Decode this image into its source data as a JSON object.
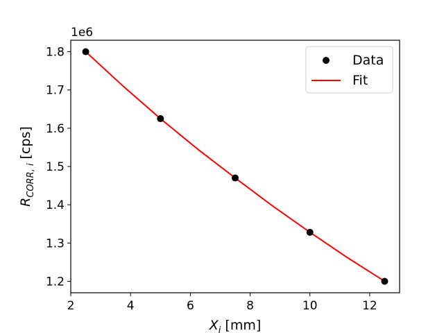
{
  "chart_data": {
    "type": "scatter",
    "xlabel": {
      "main": "X",
      "sub": "i",
      "unit": " [mm]"
    },
    "ylabel": {
      "main": "R",
      "sub": "CORR, i",
      "unit": " [cps]"
    },
    "offset_text": "1e6",
    "xlim": [
      2,
      13
    ],
    "ylim": [
      1.17,
      1.83
    ],
    "xticks": [
      2,
      4,
      6,
      8,
      10,
      12
    ],
    "yticks": [
      1.2,
      1.3,
      1.4,
      1.5,
      1.6,
      1.7,
      1.8
    ],
    "grid": false,
    "legend_position": "top-right",
    "series": [
      {
        "name": "Data",
        "kind": "scatter",
        "color": "#000000",
        "x": [
          2.5,
          5.0,
          7.5,
          10.0,
          12.5
        ],
        "y": [
          1.8,
          1.625,
          1.47,
          1.328,
          1.2
        ]
      },
      {
        "name": "Fit",
        "kind": "line",
        "color": "#ff0000",
        "x": [
          2.5,
          3.75,
          5.0,
          6.25,
          7.5,
          8.75,
          10.0,
          11.25,
          12.5
        ],
        "y": [
          1.8,
          1.71,
          1.625,
          1.545,
          1.47,
          1.397,
          1.328,
          1.262,
          1.2
        ]
      }
    ]
  }
}
